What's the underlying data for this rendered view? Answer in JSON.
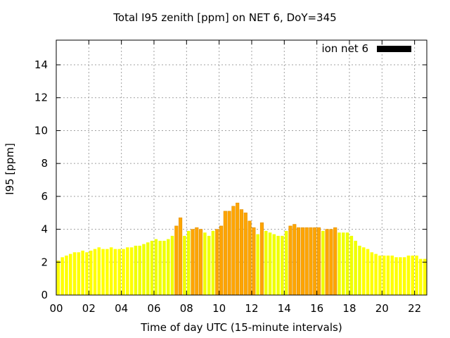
{
  "chart_data": {
    "type": "bar",
    "title": "Total I95 zenith [ppm] on NET 6, DoY=345",
    "xlabel": "Time of day UTC (15-minute intervals)",
    "ylabel": "I95 [ppm]",
    "legend": {
      "label": "ion net 6",
      "color": "#000000",
      "placement": "top-right"
    },
    "xlim": [
      0,
      22.75
    ],
    "ylim": [
      0,
      15.5
    ],
    "xticks": [
      "00",
      "02",
      "04",
      "06",
      "08",
      "10",
      "12",
      "14",
      "16",
      "18",
      "20",
      "22"
    ],
    "yticks": [
      "0",
      "2",
      "4",
      "6",
      "8",
      "10",
      "12",
      "14"
    ],
    "grid": true,
    "interval_hours": 0.25,
    "colors": {
      "low": "#ffff00",
      "mid": "#f0ff00",
      "high": "#ffa500",
      "high_border": "#e09000"
    },
    "values": [
      2.1,
      2.3,
      2.4,
      2.5,
      2.6,
      2.6,
      2.7,
      2.6,
      2.7,
      2.8,
      2.9,
      2.8,
      2.8,
      2.9,
      2.8,
      2.8,
      2.8,
      2.9,
      2.9,
      3.0,
      3.0,
      3.1,
      3.2,
      3.3,
      3.4,
      3.3,
      3.3,
      3.4,
      3.6,
      4.2,
      4.7,
      3.6,
      3.9,
      4.0,
      4.1,
      4.0,
      3.8,
      3.6,
      3.9,
      4.0,
      4.2,
      5.1,
      5.1,
      5.4,
      5.6,
      5.2,
      5.0,
      4.5,
      4.1,
      3.7,
      4.4,
      3.9,
      3.8,
      3.7,
      3.6,
      3.6,
      3.9,
      4.2,
      4.3,
      4.1,
      4.1,
      4.1,
      4.1,
      4.1,
      4.1,
      3.9,
      4.0,
      4.0,
      4.1,
      3.8,
      3.8,
      3.8,
      3.6,
      3.3,
      3.0,
      2.9,
      2.8,
      2.6,
      2.5,
      2.4,
      2.4,
      2.4,
      2.4,
      2.3,
      2.3,
      2.3,
      2.4,
      2.4,
      2.4,
      2.2,
      2.2
    ]
  }
}
